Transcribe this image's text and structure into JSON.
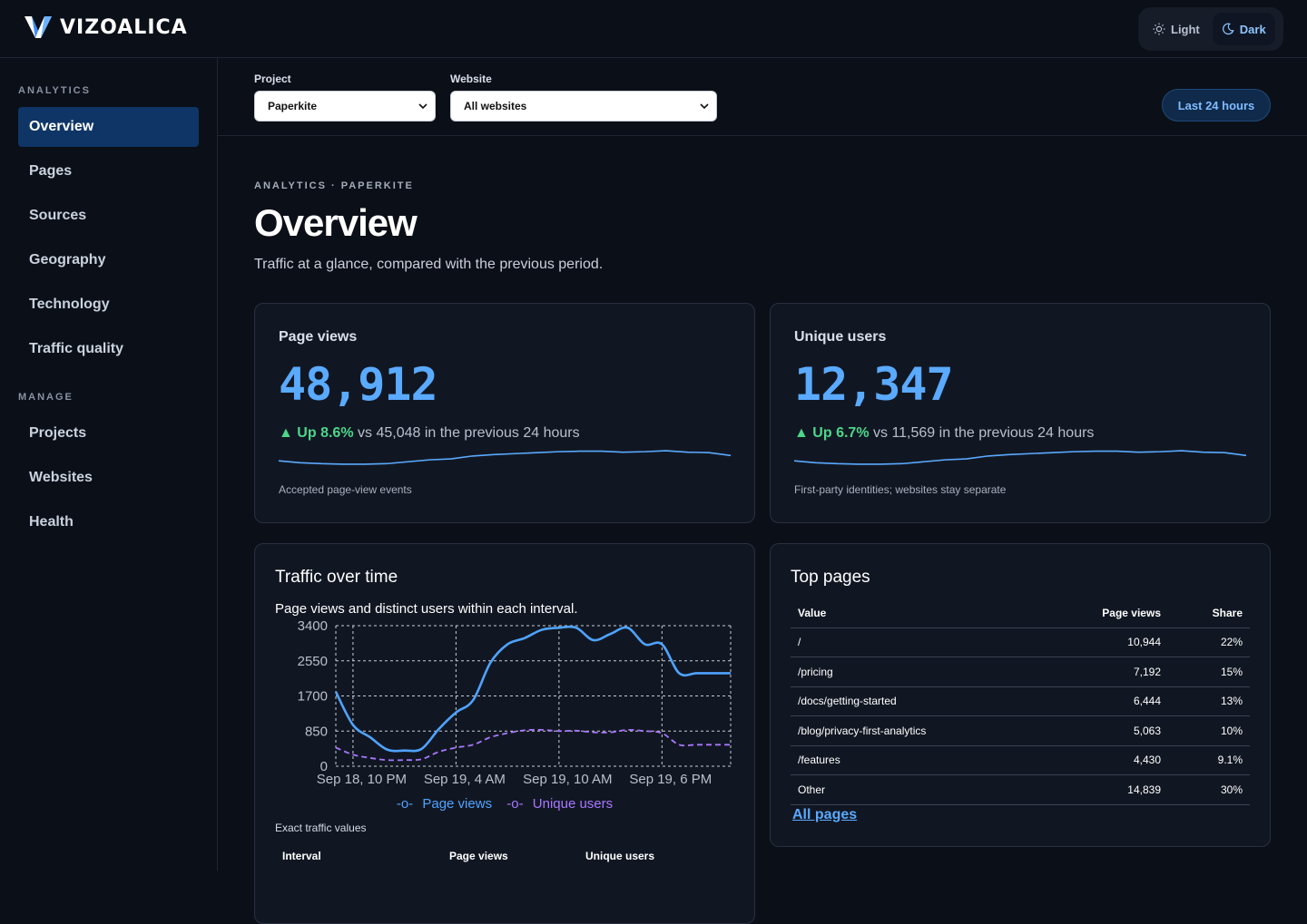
{
  "app": {
    "brand": "VIZOALICA",
    "theme": {
      "light_label": "Light",
      "dark_label": "Dark",
      "selected": "Dark"
    }
  },
  "sidebar": {
    "sections": [
      {
        "heading": "ANALYTICS",
        "items": [
          {
            "label": "Overview",
            "active": true
          },
          {
            "label": "Pages"
          },
          {
            "label": "Sources"
          },
          {
            "label": "Geography"
          },
          {
            "label": "Technology"
          },
          {
            "label": "Traffic quality"
          }
        ]
      },
      {
        "heading": "MANAGE",
        "items": [
          {
            "label": "Projects"
          },
          {
            "label": "Websites"
          },
          {
            "label": "Health"
          }
        ]
      }
    ]
  },
  "filters": {
    "project": {
      "label": "Project",
      "value": "Paperkite"
    },
    "website": {
      "label": "Website",
      "value": "All websites"
    },
    "range_label": "Last 24 hours"
  },
  "page": {
    "breadcrumb": "ANALYTICS · PAPERKITE",
    "title": "Overview",
    "subtitle": "Traffic at a glance, compared with the previous period."
  },
  "kpis": [
    {
      "label": "Page views",
      "value": "48,912",
      "change": "Up 8.6%",
      "comparison": "vs 45,048 in the previous 24 hours",
      "note": "Accepted page-view events",
      "spark": [
        1400,
        1200,
        1100,
        1050,
        1050,
        1100,
        1300,
        1500,
        1600,
        1900,
        2050,
        2150,
        2250,
        2350,
        2400,
        2400,
        2300,
        2350,
        2450,
        2300,
        2250,
        1950
      ]
    },
    {
      "label": "Unique users",
      "value": "12,347",
      "change": "Up 6.7%",
      "comparison": "vs 11,569 in the previous 24 hours",
      "note": "First-party identities; websites stay separate",
      "spark": [
        1400,
        1200,
        1100,
        1050,
        1050,
        1100,
        1300,
        1500,
        1600,
        1900,
        2050,
        2150,
        2250,
        2350,
        2400,
        2400,
        2300,
        2350,
        2450,
        2300,
        2250,
        1950
      ]
    }
  ],
  "traffic_chart": {
    "title": "Traffic over time",
    "subtitle": "Page views and distinct users within each interval.",
    "exact_values_label": "Exact traffic values",
    "table_headers": [
      "Interval",
      "Page views",
      "Unique users"
    ],
    "legend": [
      {
        "name": "Page views",
        "color": "#4fa3ff"
      },
      {
        "name": "Unique users",
        "color": "#a777ff"
      }
    ]
  },
  "chart_data": {
    "type": "line",
    "title": "Traffic over time",
    "x_tick_labels": [
      "Sep 18, 10 PM",
      "Sep 19, 4 AM",
      "Sep 19, 10 AM",
      "Sep 19, 6 PM"
    ],
    "y_ticks": [
      0,
      850,
      1700,
      2550,
      3400
    ],
    "ylim": [
      0,
      3400
    ],
    "grid": true,
    "legend_position": "bottom",
    "x": [
      "Sep 18, 9 PM",
      "Sep 18, 10 PM",
      "Sep 18, 11 PM",
      "Sep 19, 12 AM",
      "Sep 19, 1 AM",
      "Sep 19, 2 AM",
      "Sep 19, 3 AM",
      "Sep 19, 4 AM",
      "Sep 19, 5 AM",
      "Sep 19, 6 AM",
      "Sep 19, 7 AM",
      "Sep 19, 8 AM",
      "Sep 19, 9 AM",
      "Sep 19, 10 AM",
      "Sep 19, 11 AM",
      "Sep 19, 12 PM",
      "Sep 19, 1 PM",
      "Sep 19, 2 PM",
      "Sep 19, 3 PM",
      "Sep 19, 4 PM",
      "Sep 19, 5 PM",
      "Sep 19, 6 PM",
      "Sep 19, 7 PM",
      "Sep 19, 8 PM"
    ],
    "series": [
      {
        "name": "Page views",
        "values": [
          1800,
          1000,
          700,
          400,
          380,
          420,
          900,
          1300,
          1600,
          2500,
          2950,
          3100,
          3300,
          3350,
          3350,
          3050,
          3200,
          3350,
          2950,
          2950,
          2250,
          2250,
          2250,
          2250
        ]
      },
      {
        "name": "Unique users",
        "values": [
          450,
          280,
          200,
          150,
          150,
          170,
          350,
          450,
          520,
          700,
          800,
          870,
          880,
          850,
          860,
          820,
          820,
          880,
          850,
          800,
          520,
          520,
          520,
          520
        ]
      }
    ]
  },
  "top_pages": {
    "title": "Top pages",
    "headers": [
      "Value",
      "Page views",
      "Share"
    ],
    "rows": [
      [
        "/",
        "10,944",
        "22%"
      ],
      [
        "/pricing",
        "7,192",
        "15%"
      ],
      [
        "/docs/getting-started",
        "6,444",
        "13%"
      ],
      [
        "/blog/privacy-first-analytics",
        "5,063",
        "10%"
      ],
      [
        "/features",
        "4,430",
        "9.1%"
      ],
      [
        "Other",
        "14,839",
        "30%"
      ]
    ],
    "all_link": "All pages"
  }
}
